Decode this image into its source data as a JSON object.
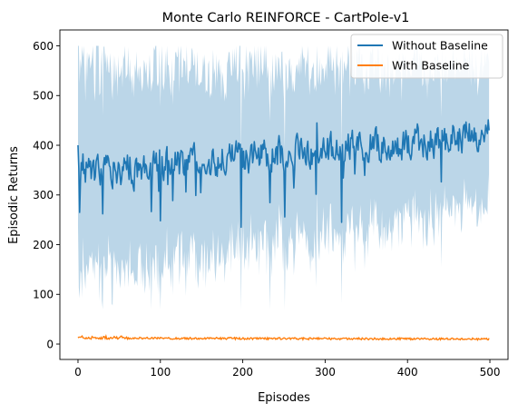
{
  "chart_data": {
    "type": "line",
    "title": "Monte Carlo REINFORCE - CartPole-v1",
    "xlabel": "Episodes",
    "ylabel": "Episodic Returns",
    "xlim": [
      -22,
      522
    ],
    "ylim": [
      -31,
      632
    ],
    "xticks": [
      0,
      100,
      200,
      300,
      400,
      500
    ],
    "yticks": [
      0,
      100,
      200,
      300,
      400,
      500,
      600
    ],
    "grid": false,
    "legend_position": "top-right",
    "episodes": 500,
    "series": [
      {
        "name": "Without Baseline",
        "color": "#1f77b4",
        "band_color": "#1f77b4",
        "band_opacity": 0.3,
        "keypoints": [
          [
            0,
            400
          ],
          [
            2,
            265
          ],
          [
            5,
            350
          ],
          [
            20,
            330
          ],
          [
            30,
            262
          ],
          [
            50,
            360
          ],
          [
            70,
            370
          ],
          [
            90,
            330
          ],
          [
            100,
            248
          ],
          [
            120,
            360
          ],
          [
            150,
            350
          ],
          [
            170,
            375
          ],
          [
            198,
            235
          ],
          [
            220,
            360
          ],
          [
            260,
            365
          ],
          [
            290,
            445
          ],
          [
            320,
            245
          ],
          [
            350,
            385
          ],
          [
            400,
            385
          ],
          [
            440,
            405
          ],
          [
            470,
            415
          ],
          [
            490,
            430
          ],
          [
            499,
            430
          ]
        ],
        "mean_start": 345,
        "mean_end": 420,
        "band_halfwidth_start": 210,
        "band_halfwidth_end": 140
      },
      {
        "name": "With Baseline",
        "color": "#ff7f0e",
        "mean_start": 12,
        "mean_end": 10,
        "noise": 2
      }
    ]
  }
}
